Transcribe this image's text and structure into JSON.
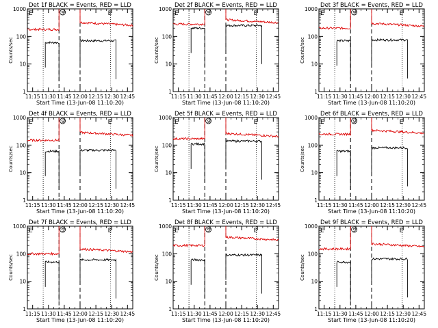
{
  "figure": {
    "time_axis_label": "Start Time (13-Jun-08 11:10:20)",
    "y_axis_label": "Counts/sec",
    "x_tick_labels": [
      "11:15",
      "11:30",
      "11:45",
      "12:00",
      "12:15",
      "12:30",
      "12:45"
    ],
    "y_tick_labels": [
      "1",
      "10",
      "100",
      "1000"
    ],
    "markers": {
      "E": "E",
      "S": "S"
    },
    "colors": {
      "events": "#000000",
      "lld": "#dd0000"
    }
  },
  "chart_data": [
    {
      "type": "line",
      "title": "Det 1f BLACK = Events, RED = LLD",
      "xlabel": "Start Time (13-Jun-08 11:10:20)",
      "ylabel": "Counts/sec",
      "y_scale": "log",
      "ylim": [
        1,
        1000
      ],
      "x_ticks": [
        "11:15",
        "11:30",
        "11:45",
        "12:00",
        "12:15",
        "12:30",
        "12:45"
      ],
      "series": [
        {
          "name": "Events",
          "color": "black",
          "segments": [
            {
              "from": "11:27",
              "to": "11:40",
              "level": 60
            },
            {
              "from": "12:00",
              "to": "12:34",
              "level": 70
            }
          ]
        },
        {
          "name": "LLD",
          "color": "red",
          "segments": [
            {
              "from": "11:10",
              "to": "11:40",
              "level": 180
            },
            {
              "from": "12:00",
              "to": "12:50",
              "level": 280
            }
          ]
        }
      ]
    },
    {
      "type": "line",
      "title": "Det 2f BLACK = Events, RED = LLD",
      "xlabel": "Start Time (13-Jun-08 11:10:20)",
      "ylabel": "Counts/sec",
      "y_scale": "log",
      "ylim": [
        1,
        1000
      ],
      "x_ticks": [
        "11:15",
        "11:30",
        "11:45",
        "12:00",
        "12:15",
        "12:30",
        "12:45"
      ],
      "series": [
        {
          "name": "Events",
          "color": "black",
          "segments": [
            {
              "from": "11:27",
              "to": "11:40",
              "level": 200
            },
            {
              "from": "12:00",
              "to": "12:34",
              "level": 250
            }
          ]
        },
        {
          "name": "LLD",
          "color": "red",
          "segments": [
            {
              "from": "11:10",
              "to": "11:40",
              "level": 280
            },
            {
              "from": "12:00",
              "to": "12:50",
              "level": 350
            }
          ]
        }
      ]
    },
    {
      "type": "line",
      "title": "Det 3f BLACK = Events, RED = LLD",
      "xlabel": "Start Time (13-Jun-08 11:10:20)",
      "ylabel": "Counts/sec",
      "y_scale": "log",
      "ylim": [
        1,
        1000
      ],
      "x_ticks": [
        "11:15",
        "11:30",
        "11:45",
        "12:00",
        "12:15",
        "12:30",
        "12:45"
      ],
      "series": [
        {
          "name": "Events",
          "color": "black",
          "segments": [
            {
              "from": "11:27",
              "to": "11:40",
              "level": 70
            },
            {
              "from": "12:00",
              "to": "12:34",
              "level": 75
            }
          ]
        },
        {
          "name": "LLD",
          "color": "red",
          "segments": [
            {
              "from": "11:10",
              "to": "11:40",
              "level": 200
            },
            {
              "from": "12:00",
              "to": "12:50",
              "level": 260
            }
          ]
        }
      ]
    },
    {
      "type": "line",
      "title": "Det 4f BLACK = Events, RED = LLD",
      "xlabel": "Start Time (13-Jun-08 11:10:20)",
      "ylabel": "Counts/sec",
      "y_scale": "log",
      "ylim": [
        1,
        1000
      ],
      "x_ticks": [
        "11:15",
        "11:30",
        "11:45",
        "12:00",
        "12:15",
        "12:30",
        "12:45"
      ],
      "series": [
        {
          "name": "Events",
          "color": "black",
          "segments": [
            {
              "from": "11:27",
              "to": "11:40",
              "level": 60
            },
            {
              "from": "12:00",
              "to": "12:34",
              "level": 65
            }
          ]
        },
        {
          "name": "LLD",
          "color": "red",
          "segments": [
            {
              "from": "11:10",
              "to": "11:40",
              "level": 150
            },
            {
              "from": "12:00",
              "to": "12:50",
              "level": 250
            }
          ]
        }
      ]
    },
    {
      "type": "line",
      "title": "Det 5f BLACK = Events, RED = LLD",
      "xlabel": "Start Time (13-Jun-08 11:10:20)",
      "ylabel": "Counts/sec",
      "y_scale": "log",
      "ylim": [
        1,
        1000
      ],
      "x_ticks": [
        "11:15",
        "11:30",
        "11:45",
        "12:00",
        "12:15",
        "12:30",
        "12:45"
      ],
      "series": [
        {
          "name": "Events",
          "color": "black",
          "segments": [
            {
              "from": "11:27",
              "to": "11:40",
              "level": 110
            },
            {
              "from": "12:00",
              "to": "12:34",
              "level": 140
            }
          ]
        },
        {
          "name": "LLD",
          "color": "red",
          "segments": [
            {
              "from": "11:10",
              "to": "11:40",
              "level": 170
            },
            {
              "from": "12:00",
              "to": "12:50",
              "level": 230
            }
          ]
        }
      ]
    },
    {
      "type": "line",
      "title": "Det 6f BLACK = Events, RED = LLD",
      "xlabel": "Start Time (13-Jun-08 11:10:20)",
      "ylabel": "Counts/sec",
      "y_scale": "log",
      "ylim": [
        1,
        1000
      ],
      "x_ticks": [
        "11:15",
        "11:30",
        "11:45",
        "12:00",
        "12:15",
        "12:30",
        "12:45"
      ],
      "series": [
        {
          "name": "Events",
          "color": "black",
          "segments": [
            {
              "from": "11:27",
              "to": "11:40",
              "level": 60
            },
            {
              "from": "12:00",
              "to": "12:34",
              "level": 80
            }
          ]
        },
        {
          "name": "LLD",
          "color": "red",
          "segments": [
            {
              "from": "11:10",
              "to": "11:40",
              "level": 250
            },
            {
              "from": "12:00",
              "to": "12:50",
              "level": 300
            }
          ]
        }
      ]
    },
    {
      "type": "line",
      "title": "Det 7f BLACK = Events, RED = LLD",
      "xlabel": "Start Time (13-Jun-08 11:10:20)",
      "ylabel": "Counts/sec",
      "y_scale": "log",
      "ylim": [
        1,
        1000
      ],
      "x_ticks": [
        "11:15",
        "11:30",
        "11:45",
        "12:00",
        "12:15",
        "12:30",
        "12:45"
      ],
      "series": [
        {
          "name": "Events",
          "color": "black",
          "segments": [
            {
              "from": "11:27",
              "to": "11:40",
              "level": 50
            },
            {
              "from": "12:00",
              "to": "12:34",
              "level": 60
            }
          ]
        },
        {
          "name": "LLD",
          "color": "red",
          "segments": [
            {
              "from": "11:10",
              "to": "11:40",
              "level": 100
            },
            {
              "from": "12:00",
              "to": "12:50",
              "level": 130
            }
          ]
        }
      ]
    },
    {
      "type": "line",
      "title": "Det 8f BLACK = Events, RED = LLD",
      "xlabel": "Start Time (13-Jun-08 11:10:20)",
      "ylabel": "Counts/sec",
      "y_scale": "log",
      "ylim": [
        1,
        1000
      ],
      "x_ticks": [
        "11:15",
        "11:30",
        "11:45",
        "12:00",
        "12:15",
        "12:30",
        "12:45"
      ],
      "series": [
        {
          "name": "Events",
          "color": "black",
          "segments": [
            {
              "from": "11:27",
              "to": "11:40",
              "level": 60
            },
            {
              "from": "12:00",
              "to": "12:34",
              "level": 90
            }
          ]
        },
        {
          "name": "LLD",
          "color": "red",
          "segments": [
            {
              "from": "11:10",
              "to": "11:40",
              "level": 200
            },
            {
              "from": "12:00",
              "to": "12:50",
              "level": 350
            }
          ]
        }
      ]
    },
    {
      "type": "line",
      "title": "Det 9f BLACK = Events, RED = LLD",
      "xlabel": "Start Time (13-Jun-08 11:10:20)",
      "ylabel": "Counts/sec",
      "y_scale": "log",
      "ylim": [
        1,
        1000
      ],
      "x_ticks": [
        "11:15",
        "11:30",
        "11:45",
        "12:00",
        "12:15",
        "12:30",
        "12:45"
      ],
      "series": [
        {
          "name": "Events",
          "color": "black",
          "segments": [
            {
              "from": "11:27",
              "to": "11:40",
              "level": 50
            },
            {
              "from": "12:00",
              "to": "12:34",
              "level": 65
            }
          ]
        },
        {
          "name": "LLD",
          "color": "red",
          "segments": [
            {
              "from": "11:10",
              "to": "11:40",
              "level": 150
            },
            {
              "from": "12:00",
              "to": "12:50",
              "level": 200
            }
          ]
        }
      ]
    }
  ]
}
